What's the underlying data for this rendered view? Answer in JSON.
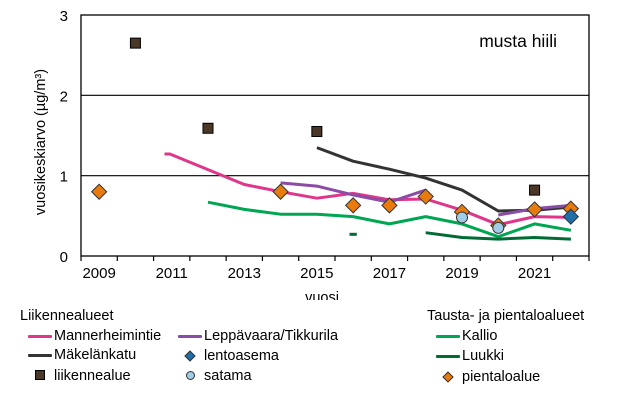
{
  "chart_data": {
    "type": "line",
    "title": "musta hiili",
    "xlabel": "vuosi",
    "ylabel": "vuosikeskiarvo  (µg/m³)",
    "xlim": [
      2008.5,
      2022.5
    ],
    "ylim": [
      0,
      3
    ],
    "xticks": [
      2009,
      2011,
      2013,
      2015,
      2017,
      2019,
      2021
    ],
    "yticks": [
      0,
      1,
      2,
      3
    ],
    "grid": "horizontal",
    "legend_placement": "bottom",
    "series": [
      {
        "key": "mannerheimintie",
        "name": "Mannerheimintie",
        "kind": "line",
        "color": "#e0368a",
        "points": [
          [
            2010.8,
            1.27
          ],
          [
            2010.95,
            1.27
          ],
          [
            2013,
            0.89
          ],
          [
            2014,
            0.8
          ],
          [
            2015,
            0.72
          ],
          [
            2016,
            0.78
          ],
          [
            2017,
            0.7
          ],
          [
            2018,
            0.71
          ],
          [
            2019,
            0.57
          ],
          [
            2020,
            0.39
          ],
          [
            2021,
            0.49
          ],
          [
            2022,
            0.48
          ]
        ]
      },
      {
        "key": "makelankatu",
        "name": "Mäkelänkatu",
        "kind": "line",
        "color": "#333333",
        "points": [
          [
            2015,
            1.35
          ],
          [
            2016,
            1.18
          ],
          [
            2017,
            1.08
          ],
          [
            2018,
            0.97
          ],
          [
            2019,
            0.82
          ],
          [
            2020,
            0.56
          ],
          [
            2021,
            0.57
          ],
          [
            2022,
            0.61
          ]
        ]
      },
      {
        "key": "leppavaara",
        "name": "Leppävaara/Tikkurila",
        "kind": "line",
        "color": "#8a4ca5",
        "segments": [
          [
            [
              2014,
              0.91
            ],
            [
              2015,
              0.87
            ],
            [
              2016,
              0.76
            ],
            [
              2017,
              0.67
            ],
            [
              2018,
              0.82
            ]
          ],
          [
            [
              2020,
              0.51
            ],
            [
              2021,
              0.59
            ],
            [
              2022,
              0.63
            ]
          ]
        ]
      },
      {
        "key": "kallio",
        "name": "Kallio",
        "kind": "line",
        "color": "#00a651",
        "points": [
          [
            2012,
            0.67
          ],
          [
            2013,
            0.58
          ],
          [
            2014,
            0.52
          ],
          [
            2015,
            0.52
          ],
          [
            2016,
            0.49
          ],
          [
            2017,
            0.4
          ],
          [
            2018,
            0.49
          ],
          [
            2019,
            0.4
          ],
          [
            2020,
            0.24
          ],
          [
            2021,
            0.4
          ],
          [
            2022,
            0.32
          ]
        ]
      },
      {
        "key": "luukki",
        "name": "Luukki",
        "kind": "line",
        "color": "#006b35",
        "segments": [
          [
            [
              2015.9,
              0.27
            ],
            [
              2016.1,
              0.27
            ]
          ],
          [
            [
              2018,
              0.29
            ],
            [
              2019,
              0.23
            ],
            [
              2020,
              0.21
            ],
            [
              2021,
              0.23
            ],
            [
              2022,
              0.21
            ]
          ]
        ]
      },
      {
        "key": "lentoasema",
        "name": "lentoasema",
        "kind": "diamond",
        "color": "#1f6fa8",
        "points": [
          [
            2022,
            0.49
          ]
        ]
      },
      {
        "key": "liikennealue",
        "name": "liikennealue",
        "kind": "square",
        "color": "#4a3728",
        "points": [
          [
            2010,
            2.65
          ],
          [
            2012,
            1.59
          ],
          [
            2015,
            1.55
          ],
          [
            2021,
            0.82
          ]
        ]
      },
      {
        "key": "satama",
        "name": "satama",
        "kind": "circle",
        "color": "#9fcde8",
        "points": [
          [
            2019,
            0.48
          ],
          [
            2020,
            0.35
          ]
        ]
      },
      {
        "key": "pientaloalue",
        "name": "pientaloalue",
        "kind": "diamond",
        "color": "#e87b0c",
        "points": [
          [
            2009,
            0.8
          ],
          [
            2014,
            0.8
          ],
          [
            2016,
            0.63
          ],
          [
            2017,
            0.63
          ],
          [
            2018,
            0.74
          ],
          [
            2019,
            0.55
          ],
          [
            2020,
            0.38
          ],
          [
            2021,
            0.58
          ],
          [
            2022,
            0.59
          ]
        ]
      }
    ]
  },
  "legend": {
    "group1_title": "Liikennealueet",
    "group2_title": "Tausta- ja pientaloalueet",
    "items": {
      "mannerheimintie": "Mannerheimintie",
      "makelankatu": "Mäkelänkatu",
      "liikennealue": "liikennealue",
      "leppavaara": "Leppävaara/Tikkurila",
      "lentoasema": "lentoasema",
      "satama": "satama",
      "kallio": "Kallio",
      "luukki": "Luukki",
      "pientaloalue": "pientaloalue"
    },
    "colors": {
      "mannerheimintie": "#e0368a",
      "makelankatu": "#333333",
      "liikennealue": "#4a3728",
      "leppavaara": "#8a4ca5",
      "lentoasema": "#1f6fa8",
      "satama": "#9fcde8",
      "kallio": "#00a651",
      "luukki": "#006b35",
      "pientaloalue": "#e87b0c"
    }
  }
}
